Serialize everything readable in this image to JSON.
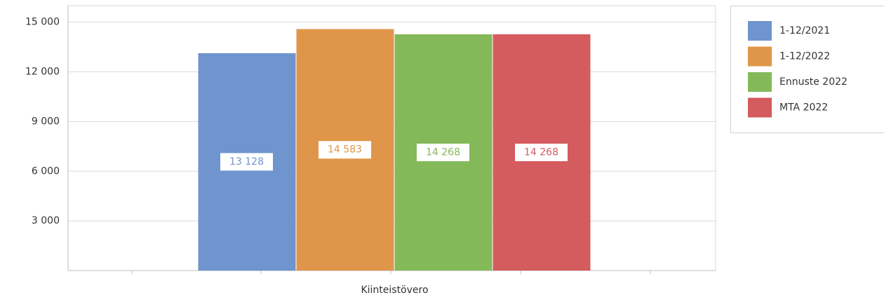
{
  "chart_data": {
    "type": "bar",
    "categories": [
      "Kiinteistövero"
    ],
    "series": [
      {
        "name": "1-12/2021",
        "color": "#7094cd",
        "values": [
          13128
        ],
        "value_labels": [
          "13 128"
        ]
      },
      {
        "name": "1-12/2022",
        "color": "#e0964a",
        "values": [
          14583
        ],
        "value_labels": [
          "14 583"
        ]
      },
      {
        "name": "Ennuste 2022",
        "color": "#84b95a",
        "values": [
          14268
        ],
        "value_labels": [
          "14 268"
        ]
      },
      {
        "name": "MTA 2022",
        "color": "#d45b5e",
        "values": [
          14268
        ],
        "value_labels": [
          "14 268"
        ]
      }
    ],
    "ylim": [
      0,
      16000
    ],
    "yticks": [
      {
        "value": 3000,
        "label": "3 000"
      },
      {
        "value": 6000,
        "label": "6 000"
      },
      {
        "value": 9000,
        "label": "9 000"
      },
      {
        "value": 12000,
        "label": "12 000"
      },
      {
        "value": 15000,
        "label": "15 000"
      }
    ],
    "grid": true,
    "legend": "right"
  }
}
